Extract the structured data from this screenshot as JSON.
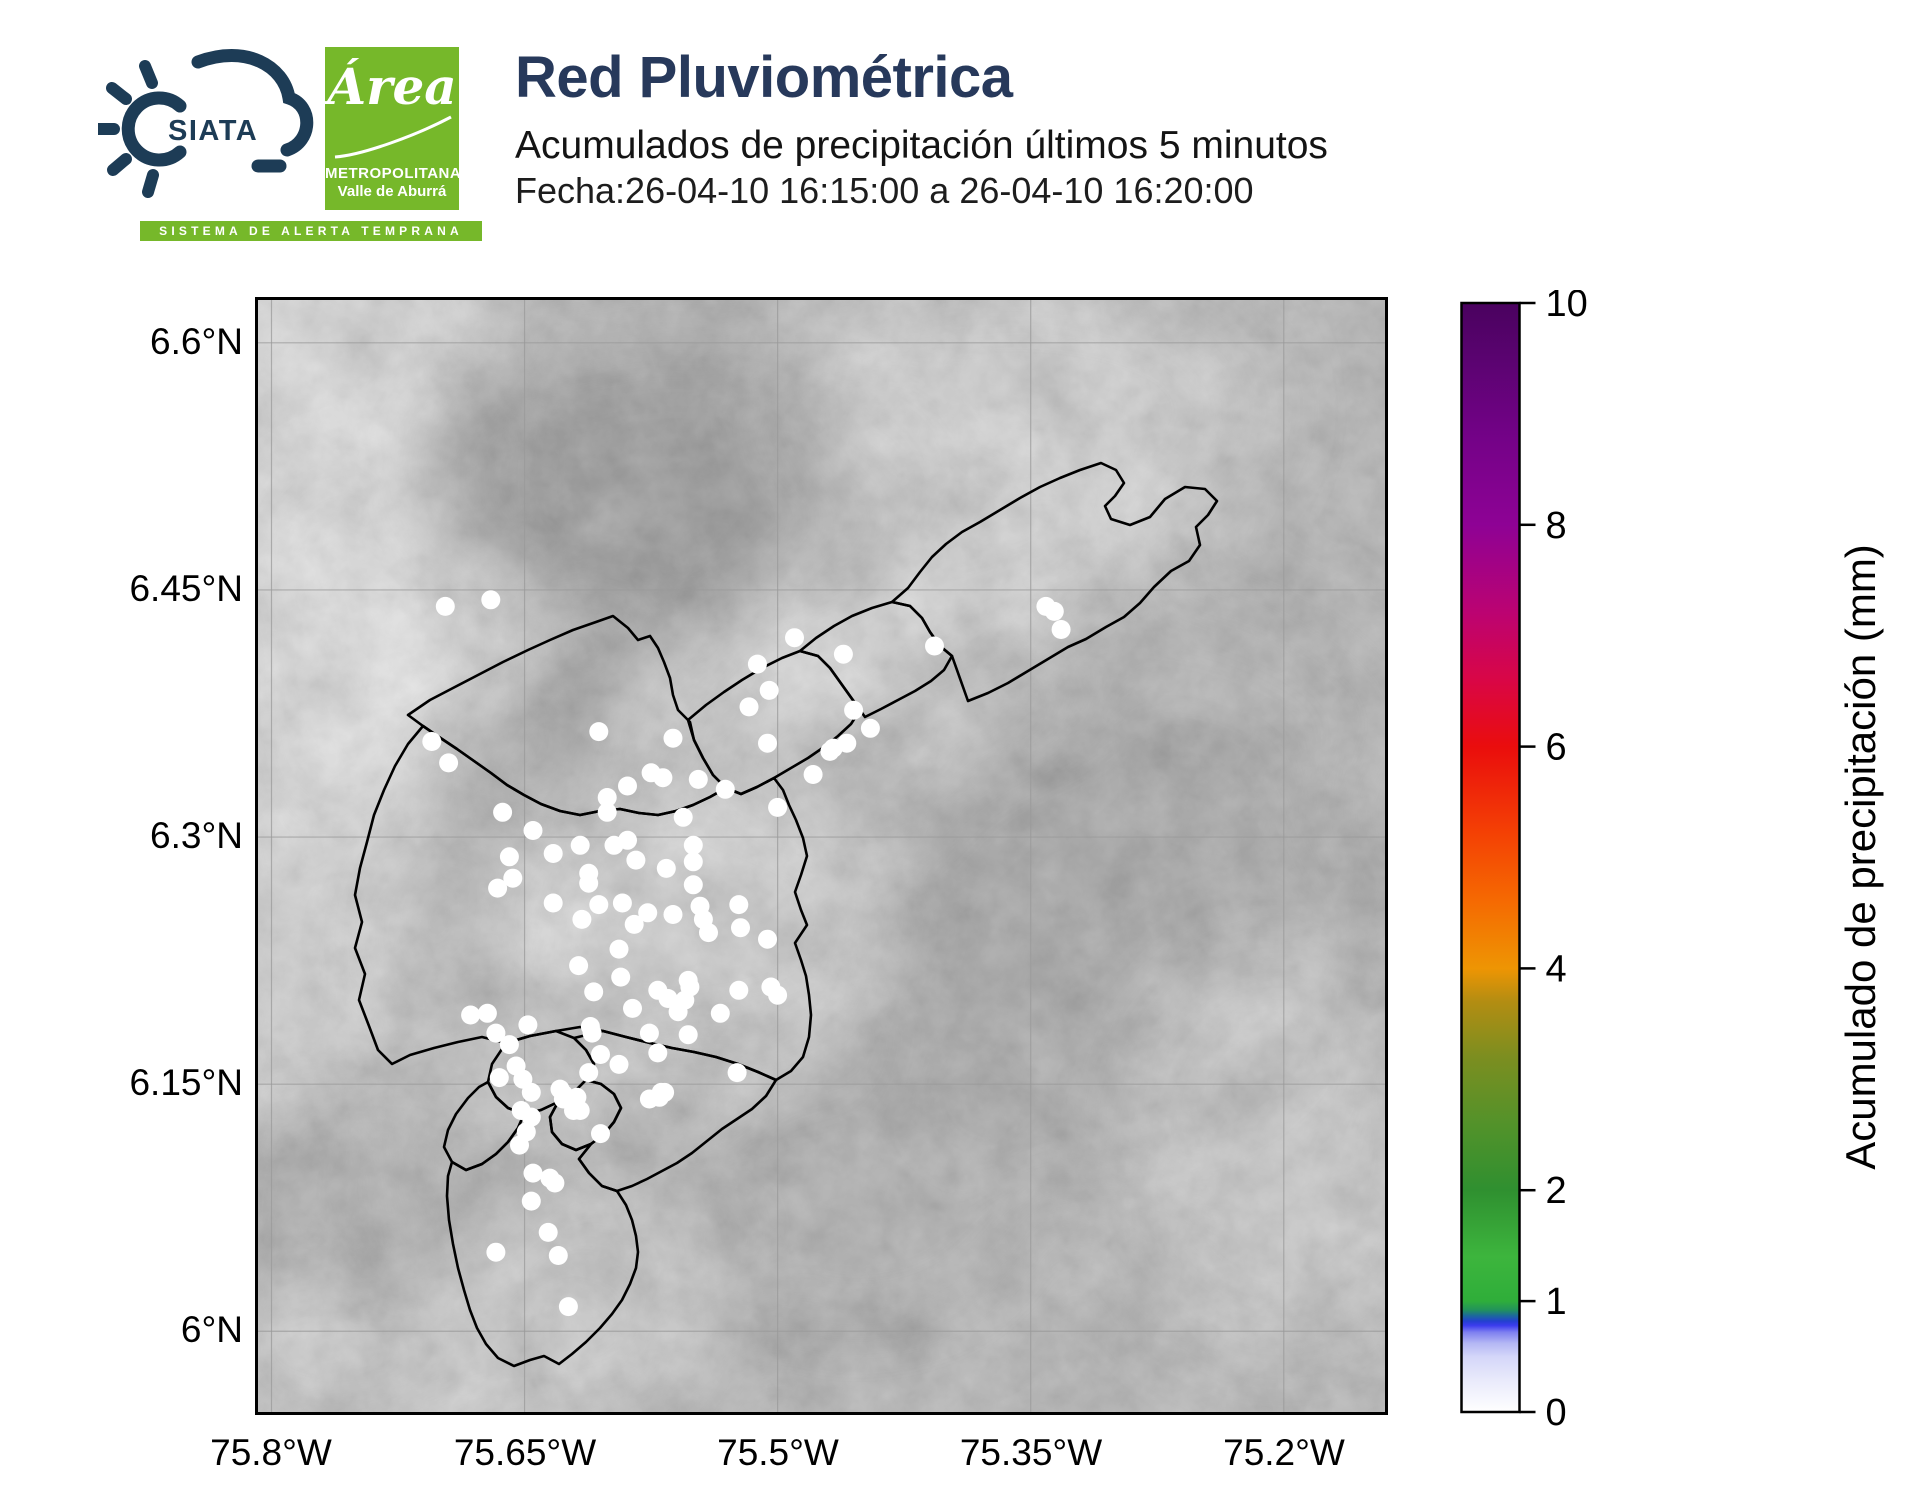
{
  "header": {
    "title": "Red Pluviométrica",
    "subtitle": "Acumulados de precipitación últimos 5 minutos",
    "date_line": "Fecha:26-04-10 16:15:00 a 26-04-10 16:20:00",
    "siata_logo": {
      "text": "SIATA",
      "banner": "SISTEMA DE ALERTA TEMPRANA"
    },
    "area_logo": {
      "script": "Área",
      "line1": "METROPOLITANA",
      "line2": "Valle de Aburrá"
    }
  },
  "colors": {
    "title_navy": "#27395B",
    "logo_navy": "#1D3C56",
    "logo_green": "#76B82A",
    "station_dot": "#ffffff",
    "boundary": "#000000",
    "gridline": "#9a9a9a"
  },
  "map": {
    "lon_min": -75.808,
    "lon_max": -75.14,
    "lat_min": 5.951,
    "lat_max": 6.626,
    "x_ticks": [
      {
        "label": "75.8°W",
        "lon": -75.8
      },
      {
        "label": "75.65°W",
        "lon": -75.65
      },
      {
        "label": "75.5°W",
        "lon": -75.5
      },
      {
        "label": "75.35°W",
        "lon": -75.35
      },
      {
        "label": "75.2°W",
        "lon": -75.2
      }
    ],
    "y_ticks": [
      {
        "label": "6.6°N",
        "lat": 6.6
      },
      {
        "label": "6.45°N",
        "lat": 6.45
      },
      {
        "label": "6.3°N",
        "lat": 6.3
      },
      {
        "label": "6.15°N",
        "lat": 6.15
      },
      {
        "label": "6°N",
        "lat": 6.0
      }
    ],
    "grid": true
  },
  "colorbar": {
    "label": "Acumulado de precipitación (mm)",
    "min": 0,
    "max": 10,
    "ticks": [
      0,
      1,
      2,
      4,
      6,
      8,
      10
    ],
    "gradient_stops": [
      {
        "value": 0.0,
        "color": "#ffffff"
      },
      {
        "value": 0.3,
        "color": "#e8e9fb"
      },
      {
        "value": 0.5,
        "color": "#d4d6f9"
      },
      {
        "value": 0.62,
        "color": "#b4b7f4"
      },
      {
        "value": 0.72,
        "color": "#7d7ff0"
      },
      {
        "value": 0.78,
        "color": "#3c3cee"
      },
      {
        "value": 0.82,
        "color": "#2341cf"
      },
      {
        "value": 0.87,
        "color": "#1c6a9a"
      },
      {
        "value": 0.92,
        "color": "#22925c"
      },
      {
        "value": 1.0,
        "color": "#2fae3a"
      },
      {
        "value": 1.4,
        "color": "#3db53d"
      },
      {
        "value": 2.0,
        "color": "#2f9030"
      },
      {
        "value": 2.6,
        "color": "#53922a"
      },
      {
        "value": 3.2,
        "color": "#7c8e20"
      },
      {
        "value": 3.7,
        "color": "#b38d12"
      },
      {
        "value": 4.0,
        "color": "#ee9503"
      },
      {
        "value": 4.6,
        "color": "#f56a02"
      },
      {
        "value": 5.2,
        "color": "#f44204"
      },
      {
        "value": 6.0,
        "color": "#ea0d0d"
      },
      {
        "value": 6.6,
        "color": "#d90646"
      },
      {
        "value": 7.2,
        "color": "#bc0371"
      },
      {
        "value": 8.0,
        "color": "#8e0295"
      },
      {
        "value": 8.8,
        "color": "#730287"
      },
      {
        "value": 9.5,
        "color": "#5a0370"
      },
      {
        "value": 10.0,
        "color": "#4a025f"
      }
    ]
  },
  "chart_data": {
    "type": "scatter",
    "title": "Red Pluviométrica",
    "note": "Rain-gauge stations, all showing 0 mm (white) for the 5-minute window",
    "xlabel": "",
    "ylabel": "Acumulado de precipitación (mm)",
    "xlim": [
      -75.808,
      -75.14
    ],
    "ylim": [
      5.951,
      6.626
    ],
    "stations": [
      [
        -75.705,
        6.358
      ],
      [
        -75.695,
        6.345
      ],
      [
        -75.606,
        6.364
      ],
      [
        -75.562,
        6.36
      ],
      [
        -75.512,
        6.405
      ],
      [
        -75.505,
        6.389
      ],
      [
        -75.517,
        6.379
      ],
      [
        -75.49,
        6.421
      ],
      [
        -75.461,
        6.411
      ],
      [
        -75.506,
        6.357
      ],
      [
        -75.467,
        6.354
      ],
      [
        -75.479,
        6.338
      ],
      [
        -75.575,
        6.339
      ],
      [
        -75.568,
        6.336
      ],
      [
        -75.589,
        6.331
      ],
      [
        -75.601,
        6.324
      ],
      [
        -75.601,
        6.315
      ],
      [
        -75.531,
        6.329
      ],
      [
        -75.547,
        6.335
      ],
      [
        -75.5,
        6.318
      ],
      [
        -75.663,
        6.315
      ],
      [
        -75.645,
        6.304
      ],
      [
        -75.556,
        6.312
      ],
      [
        -75.589,
        6.298
      ],
      [
        -75.597,
        6.295
      ],
      [
        -75.617,
        6.295
      ],
      [
        -75.633,
        6.29
      ],
      [
        -75.659,
        6.288
      ],
      [
        -75.666,
        6.269
      ],
      [
        -75.657,
        6.275
      ],
      [
        -75.612,
        6.278
      ],
      [
        -75.606,
        6.259
      ],
      [
        -75.592,
        6.26
      ],
      [
        -75.633,
        6.26
      ],
      [
        -75.584,
        6.286
      ],
      [
        -75.566,
        6.281
      ],
      [
        -75.55,
        6.295
      ],
      [
        -75.55,
        6.285
      ],
      [
        -75.341,
        6.44
      ],
      [
        -75.336,
        6.437
      ],
      [
        -75.332,
        6.426
      ],
      [
        -75.407,
        6.416
      ],
      [
        -75.455,
        6.377
      ],
      [
        -75.445,
        6.366
      ],
      [
        -75.459,
        6.357
      ],
      [
        -75.469,
        6.352
      ],
      [
        -75.612,
        6.272
      ],
      [
        -75.55,
        6.271
      ],
      [
        -75.577,
        6.254
      ],
      [
        -75.562,
        6.253
      ],
      [
        -75.523,
        6.259
      ],
      [
        -75.546,
        6.258
      ],
      [
        -75.544,
        6.25
      ],
      [
        -75.541,
        6.242
      ],
      [
        -75.616,
        6.25
      ],
      [
        -75.585,
        6.247
      ],
      [
        -75.594,
        6.232
      ],
      [
        -75.618,
        6.222
      ],
      [
        -75.593,
        6.215
      ],
      [
        -75.553,
        6.213
      ],
      [
        -75.552,
        6.209
      ],
      [
        -75.571,
        6.207
      ],
      [
        -75.565,
        6.202
      ],
      [
        -75.555,
        6.201
      ],
      [
        -75.609,
        6.206
      ],
      [
        -75.586,
        6.196
      ],
      [
        -75.611,
        6.185
      ],
      [
        -75.61,
        6.181
      ],
      [
        -75.559,
        6.194
      ],
      [
        -75.523,
        6.207
      ],
      [
        -75.504,
        6.209
      ],
      [
        -75.5,
        6.204
      ],
      [
        -75.522,
        6.245
      ],
      [
        -75.506,
        6.238
      ],
      [
        -75.534,
        6.193
      ],
      [
        -75.576,
        6.181
      ],
      [
        -75.571,
        6.169
      ],
      [
        -75.594,
        6.162
      ],
      [
        -75.605,
        6.168
      ],
      [
        -75.612,
        6.157
      ],
      [
        -75.524,
        6.157
      ],
      [
        -75.569,
        6.145
      ],
      [
        -75.576,
        6.141
      ],
      [
        -75.627,
        6.144
      ],
      [
        -75.621,
        6.134
      ],
      [
        -75.605,
        6.12
      ],
      [
        -75.682,
        6.192
      ],
      [
        -75.672,
        6.193
      ],
      [
        -75.667,
        6.181
      ],
      [
        -75.659,
        6.174
      ],
      [
        -75.648,
        6.186
      ],
      [
        -75.553,
        6.18
      ],
      [
        -75.665,
        6.154
      ],
      [
        -75.655,
        6.161
      ],
      [
        -75.651,
        6.153
      ],
      [
        -75.646,
        6.145
      ],
      [
        -75.629,
        6.147
      ],
      [
        -75.627,
        6.141
      ],
      [
        -75.619,
        6.142
      ],
      [
        -75.617,
        6.134
      ],
      [
        -75.652,
        6.134
      ],
      [
        -75.646,
        6.13
      ],
      [
        -75.649,
        6.121
      ],
      [
        -75.653,
        6.113
      ],
      [
        -75.57,
        6.142
      ],
      [
        -75.567,
        6.145
      ],
      [
        -75.645,
        6.096
      ],
      [
        -75.635,
        6.093
      ],
      [
        -75.632,
        6.09
      ],
      [
        -75.646,
        6.079
      ],
      [
        -75.636,
        6.06
      ],
      [
        -75.63,
        6.046
      ],
      [
        -75.667,
        6.048
      ],
      [
        -75.624,
        6.015
      ],
      [
        -75.697,
        6.44
      ],
      [
        -75.67,
        6.444
      ]
    ]
  }
}
